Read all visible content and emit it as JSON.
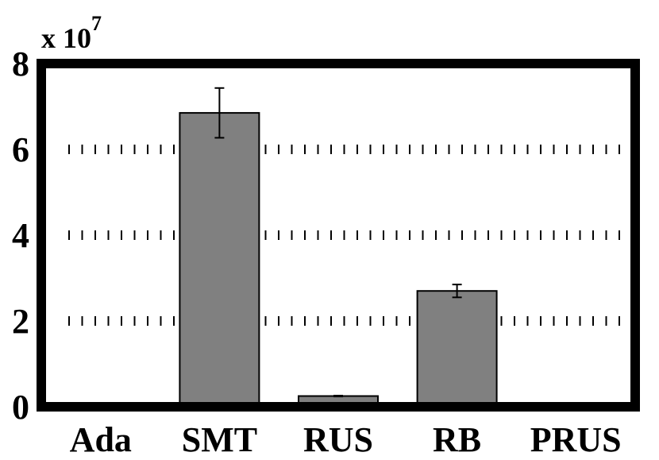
{
  "chart_data": {
    "type": "bar",
    "multiplier_label": {
      "base": "x 10",
      "exponent": "7"
    },
    "categories": [
      "Ada",
      "SMT",
      "RUS",
      "RB",
      "PRUS"
    ],
    "values": [
      0.02,
      6.85,
      0.25,
      2.7,
      0.08
    ],
    "errors": [
      0,
      0.58,
      0.01,
      0.15,
      0.01
    ],
    "ylim": [
      0,
      8
    ],
    "yticks": [
      0,
      2,
      4,
      6,
      8
    ],
    "ytick_labels": [
      "0",
      "2",
      "4",
      "6",
      "8"
    ],
    "grid": true,
    "colors": {
      "bar": "#808080",
      "frame": "#000000",
      "grid": "#000000"
    }
  }
}
